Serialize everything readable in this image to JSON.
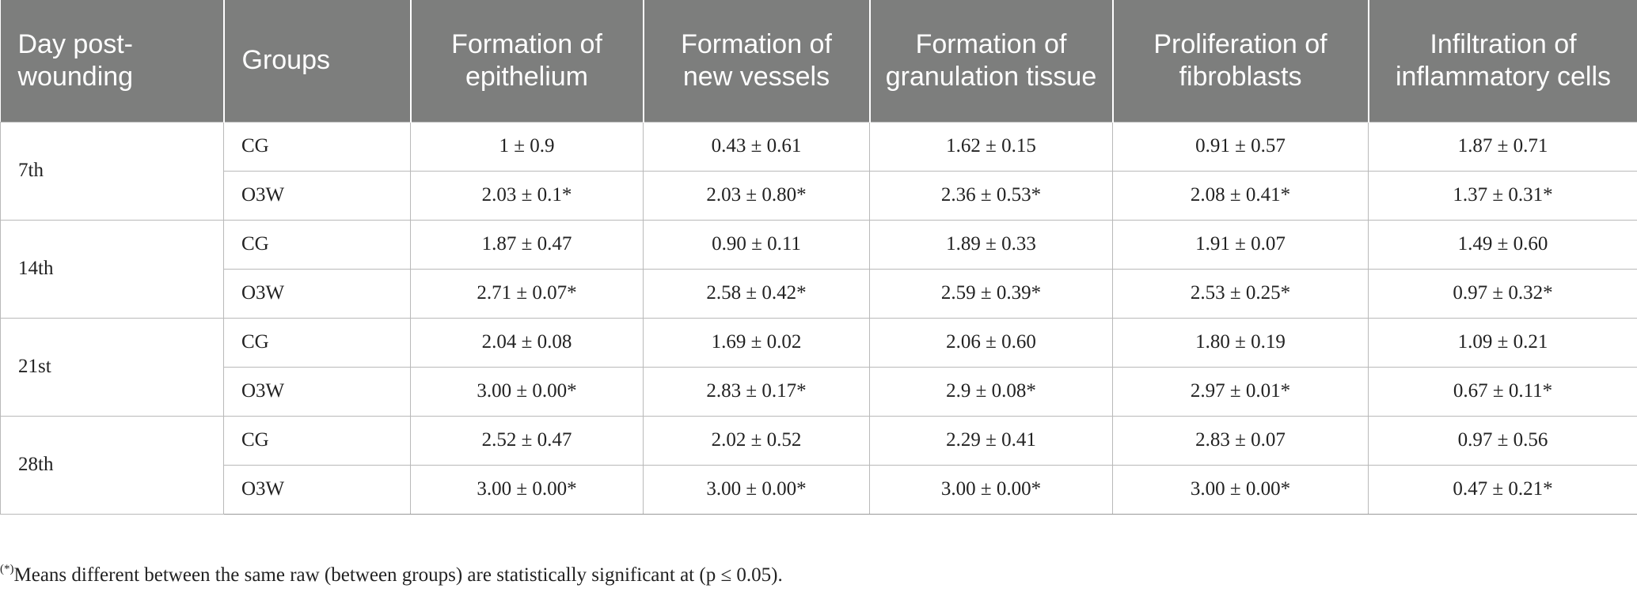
{
  "header": {
    "day": "Day post-wounding",
    "groups": "Groups",
    "epithelium": "Formation of epithelium",
    "vessels": "Formation of new vessels",
    "granulation": "Formation of granulation tissue",
    "fibroblasts": "Proliferation of fibroblasts",
    "inflammatory": "Infiltration of inflammatory cells"
  },
  "rows": [
    {
      "day": "7th",
      "cg": [
        "CG",
        "1 ± 0.9",
        "0.43 ± 0.61",
        "1.62 ± 0.15",
        "0.91 ± 0.57",
        "1.87 ± 0.71"
      ],
      "o3w": [
        "O3W",
        "2.03 ± 0.1*",
        "2.03 ± 0.80*",
        "2.36 ± 0.53*",
        "2.08 ± 0.41*",
        "1.37 ± 0.31*"
      ]
    },
    {
      "day": "14th",
      "cg": [
        "CG",
        "1.87 ± 0.47",
        "0.90 ± 0.11",
        "1.89 ± 0.33",
        "1.91 ± 0.07",
        "1.49 ± 0.60"
      ],
      "o3w": [
        "O3W",
        "2.71 ± 0.07*",
        "2.58 ± 0.42*",
        "2.59 ± 0.39*",
        "2.53 ± 0.25*",
        "0.97 ± 0.32*"
      ]
    },
    {
      "day": "21st",
      "cg": [
        "CG",
        "2.04 ± 0.08",
        "1.69 ± 0.02",
        "2.06 ± 0.60",
        "1.80 ± 0.19",
        "1.09 ± 0.21"
      ],
      "o3w": [
        "O3W",
        "3.00 ± 0.00*",
        "2.83 ± 0.17*",
        "2.9 ± 0.08*",
        "2.97 ± 0.01*",
        "0.67 ± 0.11*"
      ]
    },
    {
      "day": "28th",
      "cg": [
        "CG",
        "2.52 ± 0.47",
        "2.02 ± 0.52",
        "2.29 ± 0.41",
        "2.83 ± 0.07",
        "0.97 ± 0.56"
      ],
      "o3w": [
        "O3W",
        "3.00 ± 0.00*",
        "3.00 ± 0.00*",
        "3.00 ± 0.00*",
        "3.00 ± 0.00*",
        "0.47 ± 0.21*"
      ]
    }
  ],
  "footnote": {
    "marker": "(*)",
    "text": "Means different between the same raw (between groups) are statistically significant at (p ≤ 0.05)."
  }
}
